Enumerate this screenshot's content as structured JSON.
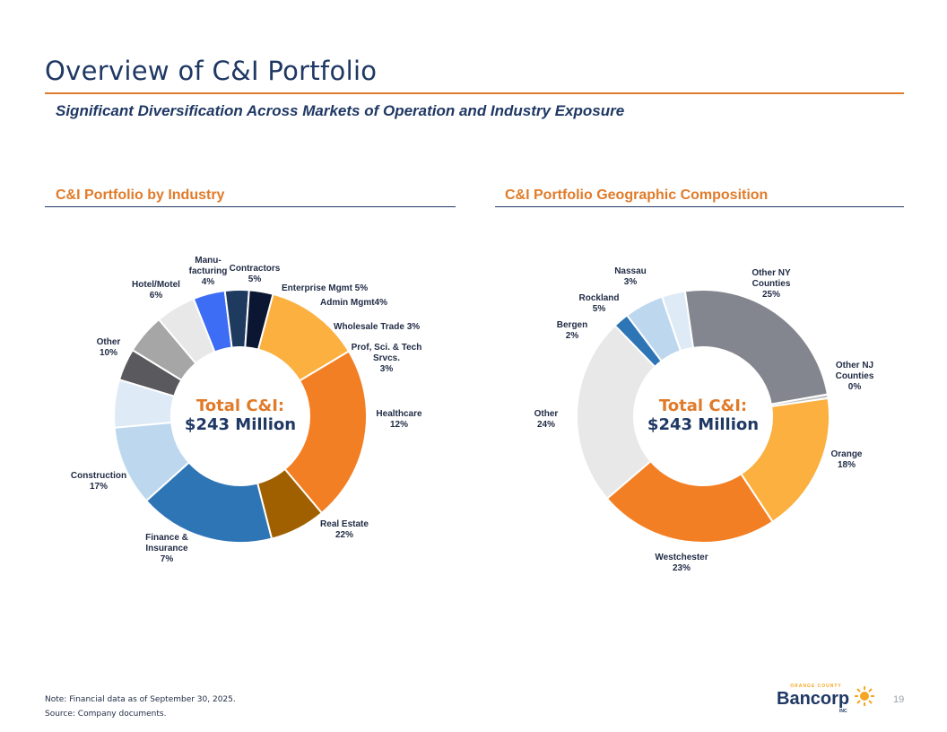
{
  "page": {
    "title": "Overview of C&I Portfolio",
    "subtitle": "Significant Diversification Across Markets of Operation and Industry Exposure",
    "page_number": "19",
    "notes": [
      "Note: Financial data as of September 30, 2025.",
      "Source: Company documents."
    ],
    "logo": {
      "top": "ORANGE COUNTY",
      "main": "Bancorp",
      "bottom": "INC",
      "color": "#1f3864",
      "accent": "#f5a623"
    }
  },
  "colors": {
    "accent": "#e07b2a",
    "navy": "#1f3864"
  },
  "chart_data": [
    {
      "type": "pie",
      "donut": true,
      "title": "C&I Portfolio by Industry",
      "center_label": [
        "Total C&I:",
        "$243 Million"
      ],
      "slices": [
        {
          "label": [
            "Healthcare",
            "12%"
          ],
          "value": 12,
          "color": "#fbb040"
        },
        {
          "label": [
            "Real Estate",
            "22%"
          ],
          "value": 22,
          "color": "#f37f24"
        },
        {
          "label": [
            "Finance &",
            "Insurance",
            "7%"
          ],
          "value": 7,
          "color": "#a06000"
        },
        {
          "label": [
            "Construction",
            "17%"
          ],
          "value": 17,
          "color": "#2e75b6"
        },
        {
          "label": [
            "Other",
            "10%"
          ],
          "value": 10,
          "color": "#bdd7ee"
        },
        {
          "label": [
            "Hotel/Motel",
            "6%"
          ],
          "value": 6,
          "color": "#deebf7"
        },
        {
          "label": [
            "Manu-",
            "facturing",
            "4%"
          ],
          "value": 4,
          "color": "#5a5a5e"
        },
        {
          "label": [
            "Contractors",
            "5%"
          ],
          "value": 5,
          "color": "#a6a6a6"
        },
        {
          "label": [
            "Enterprise Mgmt 5%"
          ],
          "value": 5,
          "color": "#e8e8e8"
        },
        {
          "label": [
            "Admin Mgmt4%"
          ],
          "value": 4,
          "color": "#3d6cf5"
        },
        {
          "label": [
            "Wholesale  Trade 3%"
          ],
          "value": 3,
          "color": "#1f3a5f"
        },
        {
          "label": [
            "Prof, Sci. & Tech",
            "Srvcs.",
            "3%"
          ],
          "value": 3,
          "color": "#0b1633"
        }
      ]
    },
    {
      "type": "pie",
      "donut": true,
      "title": "C&I Portfolio Geographic Composition",
      "center_label": [
        "Total C&I:",
        "$243 Million"
      ],
      "slices": [
        {
          "label": [
            "Other NJ",
            "Counties",
            "0%"
          ],
          "value": 0.5,
          "color": "#c0c0c0"
        },
        {
          "label": [
            "Orange",
            "18%"
          ],
          "value": 18,
          "color": "#fbb040"
        },
        {
          "label": [
            "Westchester",
            "23%"
          ],
          "value": 23,
          "color": "#f37f24"
        },
        {
          "label": [
            "Other",
            "24%"
          ],
          "value": 24,
          "color": "#e8e8e8"
        },
        {
          "label": [
            "Bergen",
            "2%"
          ],
          "value": 2,
          "color": "#2e75b6"
        },
        {
          "label": [
            "Rockland",
            "5%"
          ],
          "value": 5,
          "color": "#bdd7ee"
        },
        {
          "label": [
            "Nassau",
            "3%"
          ],
          "value": 3,
          "color": "#deebf7"
        },
        {
          "label": [
            "Other NY",
            "Counties",
            "25%"
          ],
          "value": 24.5,
          "color": "#84868f"
        }
      ]
    }
  ]
}
